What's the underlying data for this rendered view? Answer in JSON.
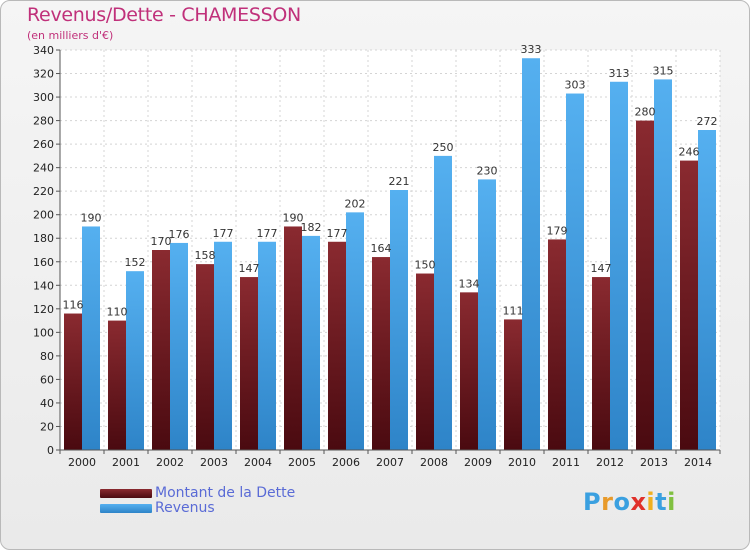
{
  "title": "Revenus/Dette - CHAMESSON",
  "subtitle": "(en milliers d'€)",
  "colors": {
    "debt": "#7a1f26",
    "revenue": "#3d9ee8",
    "title": "#c0307a"
  },
  "logo": {
    "text": "Proxiti",
    "letters": [
      "P",
      "r",
      "o",
      "x",
      "i",
      "t",
      "i"
    ],
    "colors": [
      "#3aa0e0",
      "#e89a2a",
      "#3aa0e0",
      "#e0302a",
      "#f0b020",
      "#3aa0e0",
      "#80c040"
    ]
  },
  "legend": {
    "debt_label": "Montant de la Dette",
    "revenue_label": "Revenus"
  },
  "chart_data": {
    "type": "bar",
    "categories": [
      "2000",
      "2001",
      "2002",
      "2003",
      "2004",
      "2005",
      "2006",
      "2007",
      "2008",
      "2009",
      "2010",
      "2011",
      "2012",
      "2013",
      "2014"
    ],
    "series": [
      {
        "name": "Montant de la Dette",
        "values": [
          116,
          110,
          170,
          158,
          147,
          190,
          177,
          164,
          150,
          134,
          111,
          179,
          147,
          280,
          246
        ]
      },
      {
        "name": "Revenus",
        "values": [
          190,
          152,
          176,
          177,
          177,
          182,
          202,
          221,
          250,
          230,
          333,
          303,
          313,
          315,
          272
        ]
      }
    ],
    "ylim": [
      0,
      340
    ],
    "yticks": [
      0,
      20,
      40,
      60,
      80,
      100,
      120,
      140,
      160,
      180,
      200,
      220,
      240,
      260,
      280,
      300,
      320,
      340
    ],
    "grid": true,
    "legend_position": "bottom-left"
  }
}
